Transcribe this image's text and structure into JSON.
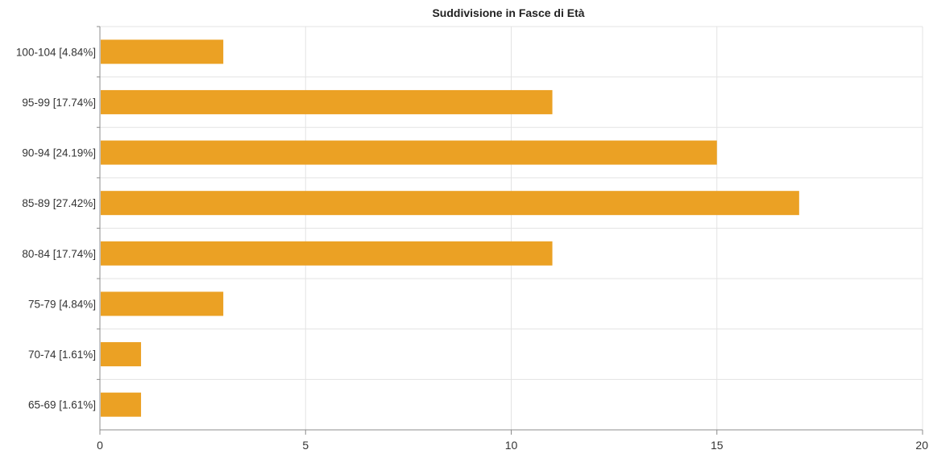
{
  "chart_data": {
    "type": "bar",
    "orientation": "horizontal",
    "title": "Suddivisione in Fasce di Età",
    "xlabel": "",
    "ylabel": "",
    "categories": [
      "100-104 [4.84%]",
      "95-99 [17.74%]",
      "90-94 [24.19%]",
      "85-89 [27.42%]",
      "80-84 [17.74%]",
      "75-79 [4.84%]",
      "70-74 [1.61%]",
      "65-69 [1.61%]"
    ],
    "values": [
      3,
      11,
      15,
      17,
      11,
      3,
      1,
      1
    ],
    "xlim": [
      0,
      20
    ],
    "x_ticks": [
      "0",
      "5",
      "10",
      "15",
      "20"
    ],
    "grid": true,
    "legend": "none",
    "bar_color": "#eba124",
    "grid_color": "#e3e3e3",
    "axis_color": "#8c8c8c"
  }
}
